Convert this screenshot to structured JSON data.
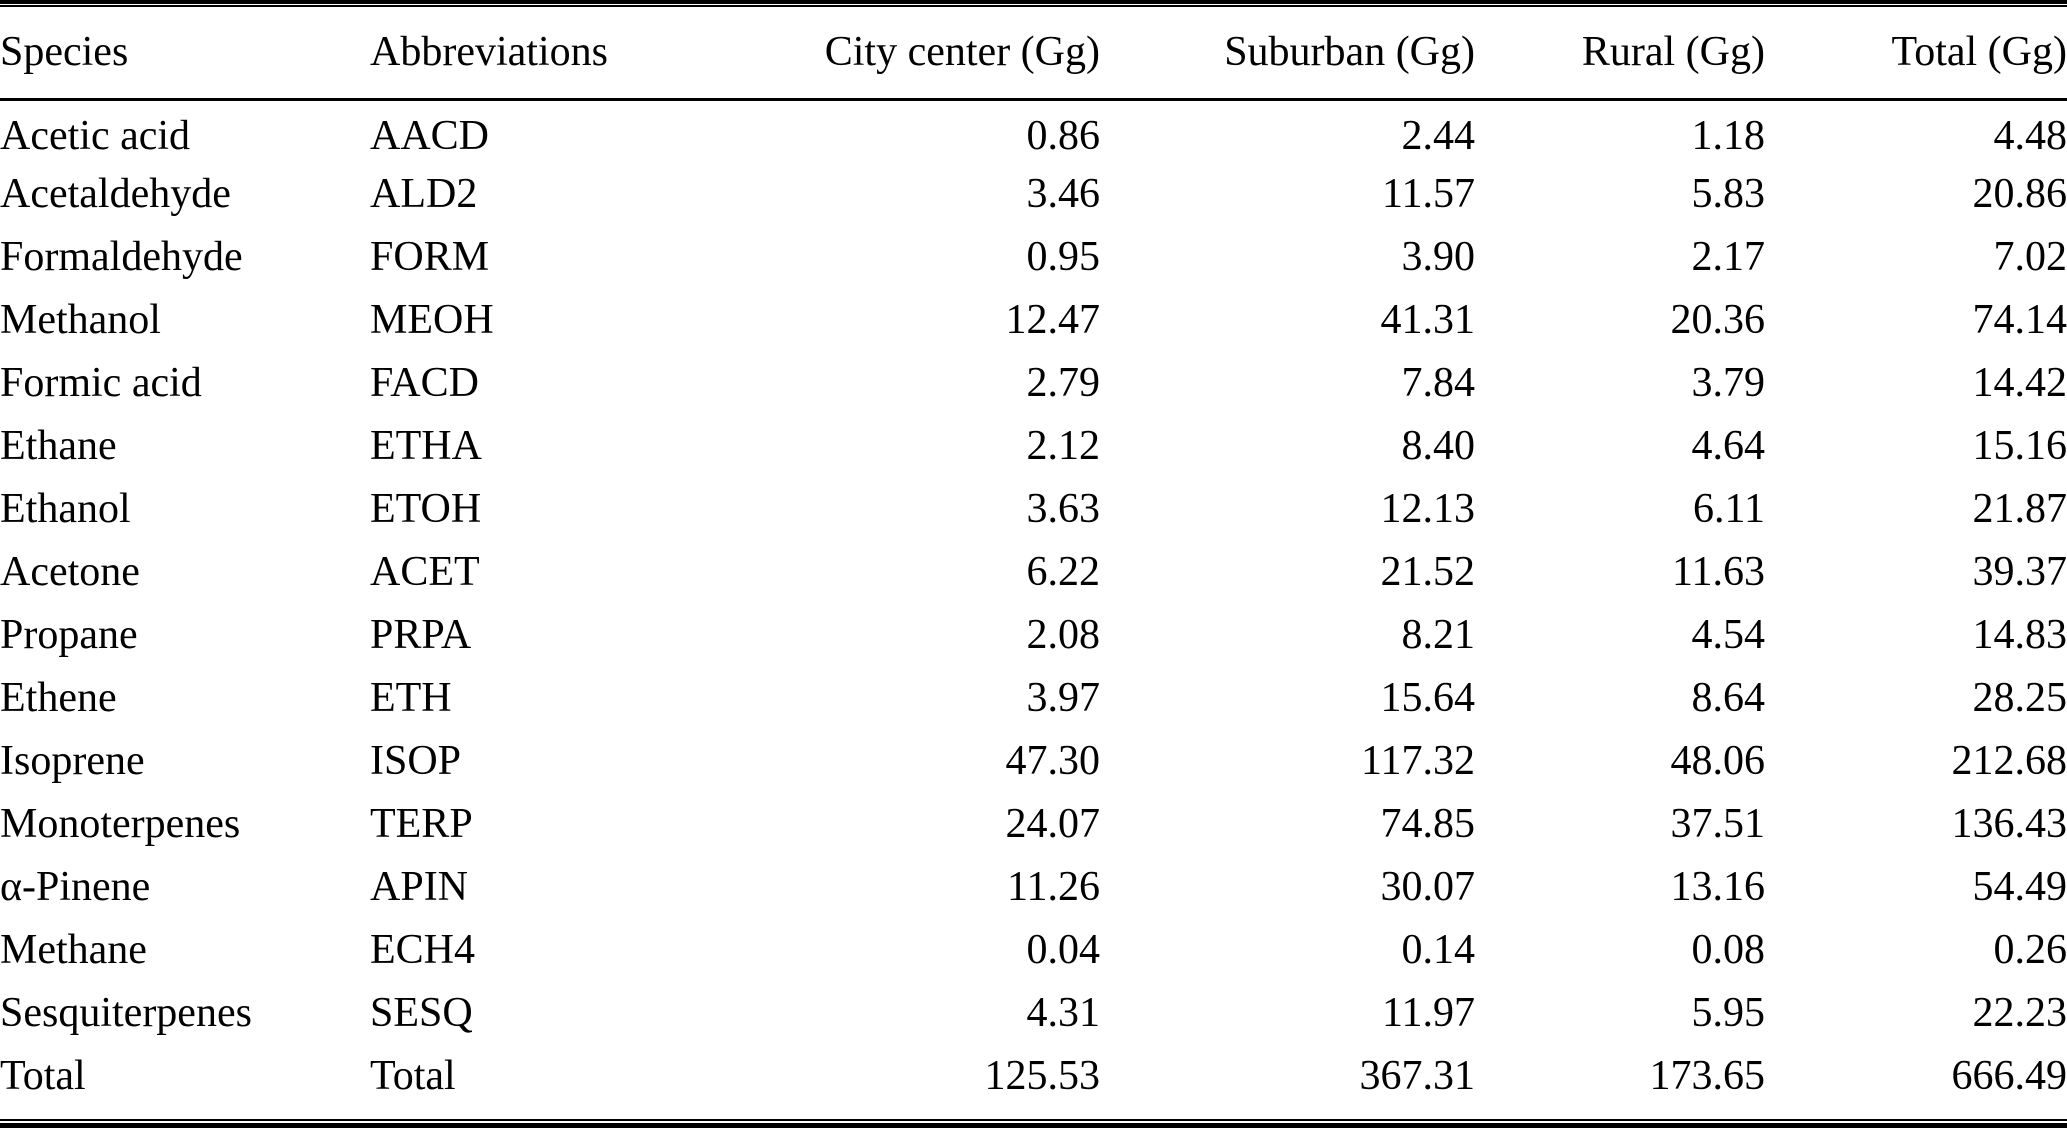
{
  "table": {
    "columns": [
      {
        "label": "Species",
        "align": "left"
      },
      {
        "label": "Abbreviations",
        "align": "left"
      },
      {
        "label": "City center (Gg)",
        "align": "right"
      },
      {
        "label": "Suburban (Gg)",
        "align": "right"
      },
      {
        "label": "Rural (Gg)",
        "align": "right"
      },
      {
        "label": "Total (Gg)",
        "align": "right"
      }
    ],
    "rows": [
      [
        "Acetic acid",
        "AACD",
        "0.86",
        "2.44",
        "1.18",
        "4.48"
      ],
      [
        "Acetaldehyde",
        "ALD2",
        "3.46",
        "11.57",
        "5.83",
        "20.86"
      ],
      [
        "Formaldehyde",
        "FORM",
        "0.95",
        "3.90",
        "2.17",
        "7.02"
      ],
      [
        "Methanol",
        "MEOH",
        "12.47",
        "41.31",
        "20.36",
        "74.14"
      ],
      [
        "Formic acid",
        "FACD",
        "2.79",
        "7.84",
        "3.79",
        "14.42"
      ],
      [
        "Ethane",
        "ETHA",
        "2.12",
        "8.40",
        "4.64",
        "15.16"
      ],
      [
        "Ethanol",
        "ETOH",
        "3.63",
        "12.13",
        "6.11",
        "21.87"
      ],
      [
        "Acetone",
        "ACET",
        "6.22",
        "21.52",
        "11.63",
        "39.37"
      ],
      [
        "Propane",
        "PRPA",
        "2.08",
        "8.21",
        "4.54",
        "14.83"
      ],
      [
        "Ethene",
        "ETH",
        "3.97",
        "15.64",
        "8.64",
        "28.25"
      ],
      [
        "Isoprene",
        "ISOP",
        "47.30",
        "117.32",
        "48.06",
        "212.68"
      ],
      [
        "Monoterpenes",
        "TERP",
        "24.07",
        "74.85",
        "37.51",
        "136.43"
      ],
      [
        "α-Pinene",
        "APIN",
        "11.26",
        "30.07",
        "13.16",
        "54.49"
      ],
      [
        "Methane",
        "ECH4",
        "0.04",
        "0.14",
        "0.08",
        "0.26"
      ],
      [
        "Sesquiterpenes",
        "SESQ",
        "4.31",
        "11.97",
        "5.95",
        "22.23"
      ],
      [
        "Total",
        "Total",
        "125.53",
        "367.31",
        "173.65",
        "666.49"
      ]
    ],
    "cell_names": [
      "cell-species",
      "cell-abbreviation",
      "cell-city-center",
      "cell-suburban",
      "cell-rural",
      "cell-total"
    ],
    "column_names": [
      "column-header-species",
      "column-header-abbreviations",
      "column-header-city-center",
      "column-header-suburban",
      "column-header-rural",
      "column-header-total"
    ]
  }
}
